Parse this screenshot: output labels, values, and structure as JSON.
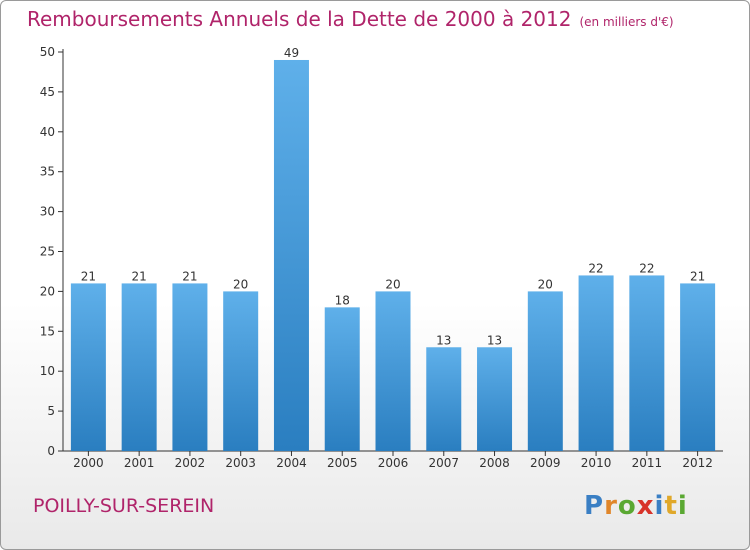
{
  "title": "Remboursements Annuels de la Dette de 2000 à 2012",
  "subtitle": "(en milliers d'€)",
  "commune": "POILLY-SUR-SEREIN",
  "logo": {
    "letters": [
      {
        "ch": "P",
        "color": "#3a7fc4"
      },
      {
        "ch": "r",
        "color": "#e0862a"
      },
      {
        "ch": "o",
        "color": "#5aa832"
      },
      {
        "ch": "x",
        "color": "#d8332a"
      },
      {
        "ch": "i",
        "color": "#3a7fc4"
      },
      {
        "ch": "t",
        "color": "#e0a82a"
      },
      {
        "ch": "i",
        "color": "#5aa832"
      }
    ]
  },
  "colors": {
    "title": "#b0246a",
    "bar_top": "#5fb0ea",
    "bar_bottom": "#2a7ec0",
    "axis": "#333333"
  },
  "chart_data": {
    "type": "bar",
    "title": "Remboursements Annuels de la Dette de 2000 à 2012",
    "subtitle": "(en milliers d'€)",
    "categories": [
      "2000",
      "2001",
      "2002",
      "2003",
      "2004",
      "2005",
      "2006",
      "2007",
      "2008",
      "2009",
      "2010",
      "2011",
      "2012"
    ],
    "values": [
      21,
      21,
      21,
      20,
      49,
      18,
      20,
      13,
      13,
      20,
      22,
      22,
      21
    ],
    "ylim": [
      0,
      50
    ],
    "yticks": [
      0,
      5,
      10,
      15,
      20,
      25,
      30,
      35,
      40,
      45,
      50
    ],
    "grid": false,
    "data_labels": true
  }
}
